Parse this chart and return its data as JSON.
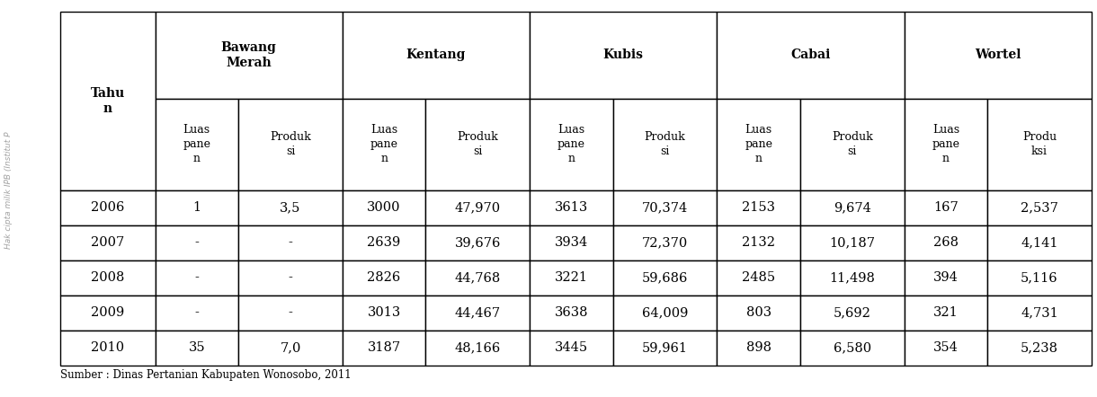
{
  "col_groups": [
    "Bawang\nMerah",
    "Kentang",
    "Kubis",
    "Cabai",
    "Wortel"
  ],
  "years": [
    "2006",
    "2007",
    "2008",
    "2009",
    "2010"
  ],
  "data": [
    [
      "1",
      "3,5",
      "3000",
      "47,970",
      "3613",
      "70,374",
      "2153",
      "9,674",
      "167",
      "2,537"
    ],
    [
      "-",
      "-",
      "2639",
      "39,676",
      "3934",
      "72,370",
      "2132",
      "10,187",
      "268",
      "4,141"
    ],
    [
      "-",
      "-",
      "2826",
      "44,768",
      "3221",
      "59,686",
      "2485",
      "11,498",
      "394",
      "5,116"
    ],
    [
      "-",
      "-",
      "3013",
      "44,467",
      "3638",
      "64,009",
      "803",
      "5,692",
      "321",
      "4,731"
    ],
    [
      "35",
      "7,0",
      "3187",
      "48,166",
      "3445",
      "59,961",
      "898",
      "6,580",
      "354",
      "5,238"
    ]
  ],
  "sub_labels": [
    "Luas\npane\nn",
    "Produk\nsi",
    "Luas\npane\nn",
    "Produk\nsi",
    "Luas\npane\nn",
    "Produk\nsi",
    "Luas\npane\nn",
    "Produk\nsi",
    "Luas\npane\nn",
    "Produ\nksi"
  ],
  "source_text": "Sumber : Dinas Pertanian Kabupaten Wonosobo, 2011",
  "border_color": "#000000",
  "text_color": "#000000",
  "bg_color": "#ffffff"
}
